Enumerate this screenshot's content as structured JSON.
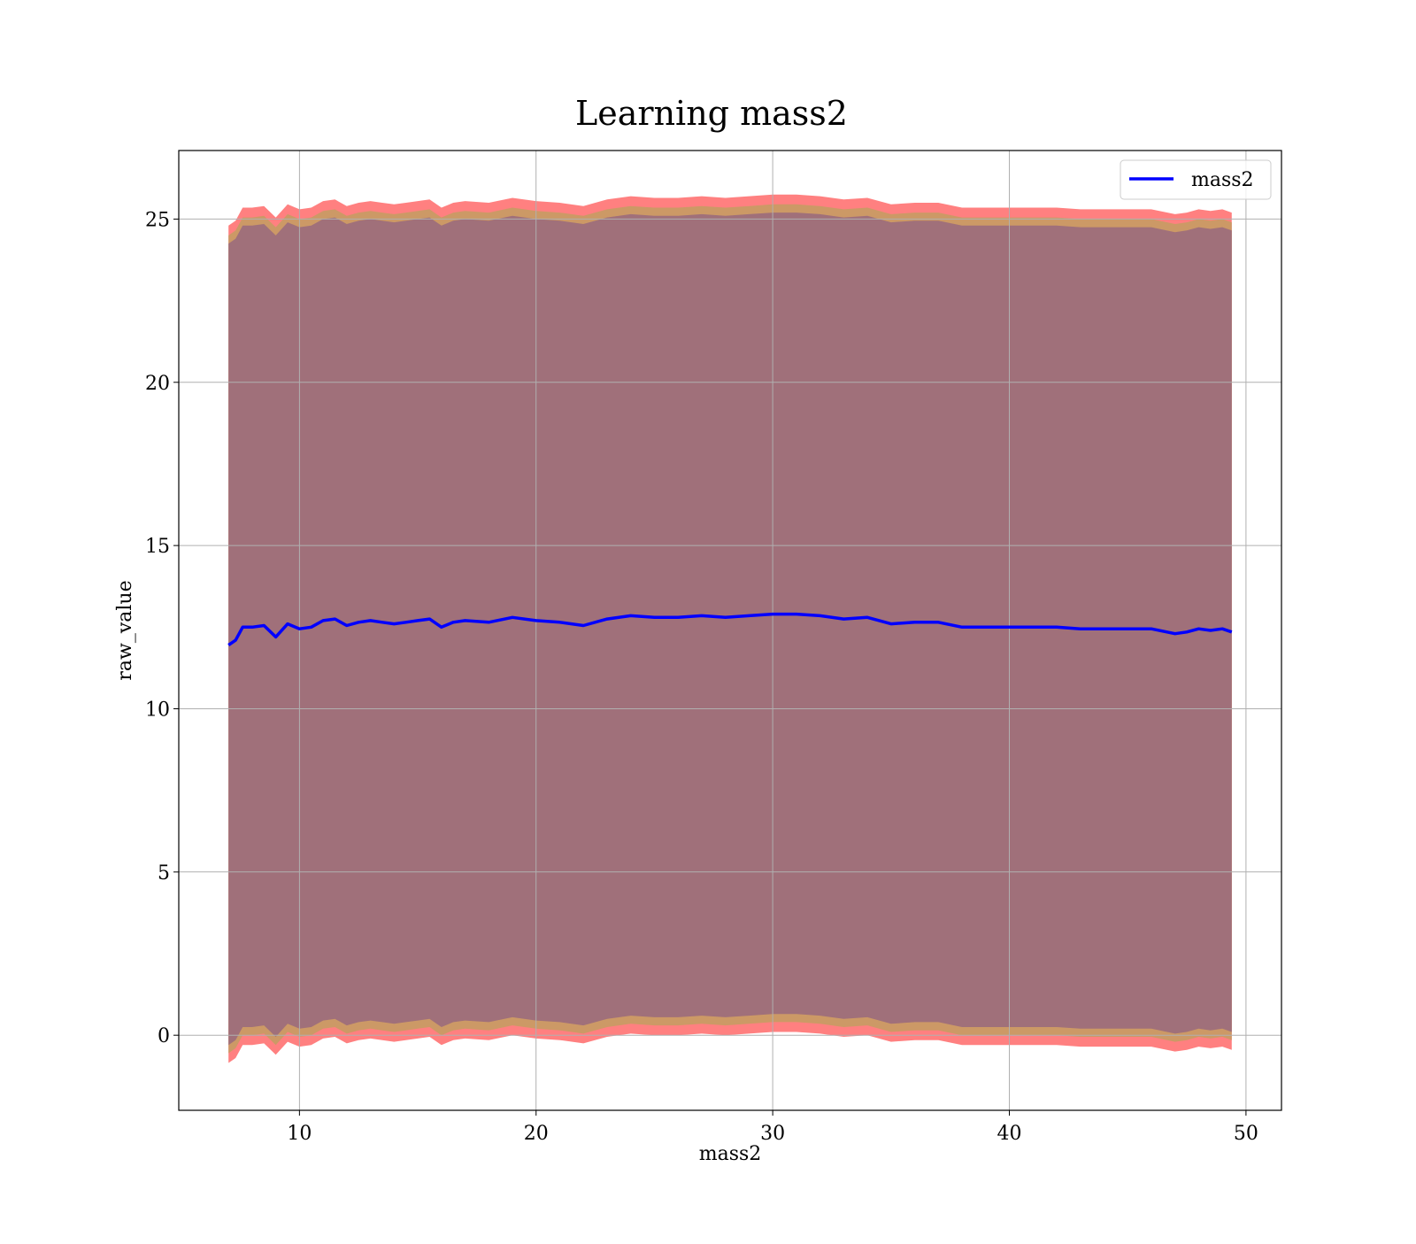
{
  "chart_data": {
    "type": "line",
    "title": "Learning mass2",
    "xlabel": "mass2",
    "ylabel": "raw_value",
    "xlim": [
      4.9,
      51.5
    ],
    "ylim": [
      -2.3,
      27.1
    ],
    "xticks": [
      10,
      20,
      30,
      40,
      50
    ],
    "yticks": [
      0,
      5,
      10,
      15,
      20,
      25
    ],
    "grid": true,
    "legend_position": "upper right",
    "series": [
      {
        "name": "mass2",
        "color": "#0000ff",
        "x": [
          7.0,
          7.3,
          7.6,
          8.0,
          8.5,
          9.0,
          9.5,
          10.0,
          10.5,
          11.0,
          11.5,
          12.0,
          12.5,
          13.0,
          13.5,
          14.0,
          14.5,
          15.0,
          15.5,
          16.0,
          16.5,
          17.0,
          18.0,
          19.0,
          20.0,
          21.0,
          22.0,
          23.0,
          24.0,
          25.0,
          26.0,
          27.0,
          28.0,
          29.0,
          30.0,
          31.0,
          32.0,
          33.0,
          34.0,
          35.0,
          36.0,
          37.0,
          38.0,
          39.0,
          40.0,
          41.0,
          42.0,
          43.0,
          44.0,
          45.0,
          46.0,
          47.0,
          47.5,
          48.0,
          48.5,
          49.0,
          49.4
        ],
        "values": [
          11.95,
          12.1,
          12.5,
          12.5,
          12.55,
          12.2,
          12.6,
          12.45,
          12.5,
          12.7,
          12.75,
          12.55,
          12.65,
          12.7,
          12.65,
          12.6,
          12.65,
          12.7,
          12.75,
          12.5,
          12.65,
          12.7,
          12.65,
          12.8,
          12.7,
          12.65,
          12.55,
          12.75,
          12.85,
          12.8,
          12.8,
          12.85,
          12.8,
          12.85,
          12.9,
          12.9,
          12.85,
          12.75,
          12.8,
          12.6,
          12.65,
          12.65,
          12.5,
          12.5,
          12.5,
          12.5,
          12.5,
          12.45,
          12.45,
          12.45,
          12.45,
          12.3,
          12.35,
          12.45,
          12.4,
          12.45,
          12.35
        ]
      }
    ],
    "bands": [
      {
        "color": "#ff8080",
        "upper_offset": 12.85,
        "lower_offset": -12.8
      },
      {
        "color": "#cc9966",
        "upper_offset": 12.55,
        "lower_offset": -12.5
      },
      {
        "color": "#a0707a",
        "upper_offset": 12.3,
        "lower_offset": -12.25
      }
    ]
  }
}
